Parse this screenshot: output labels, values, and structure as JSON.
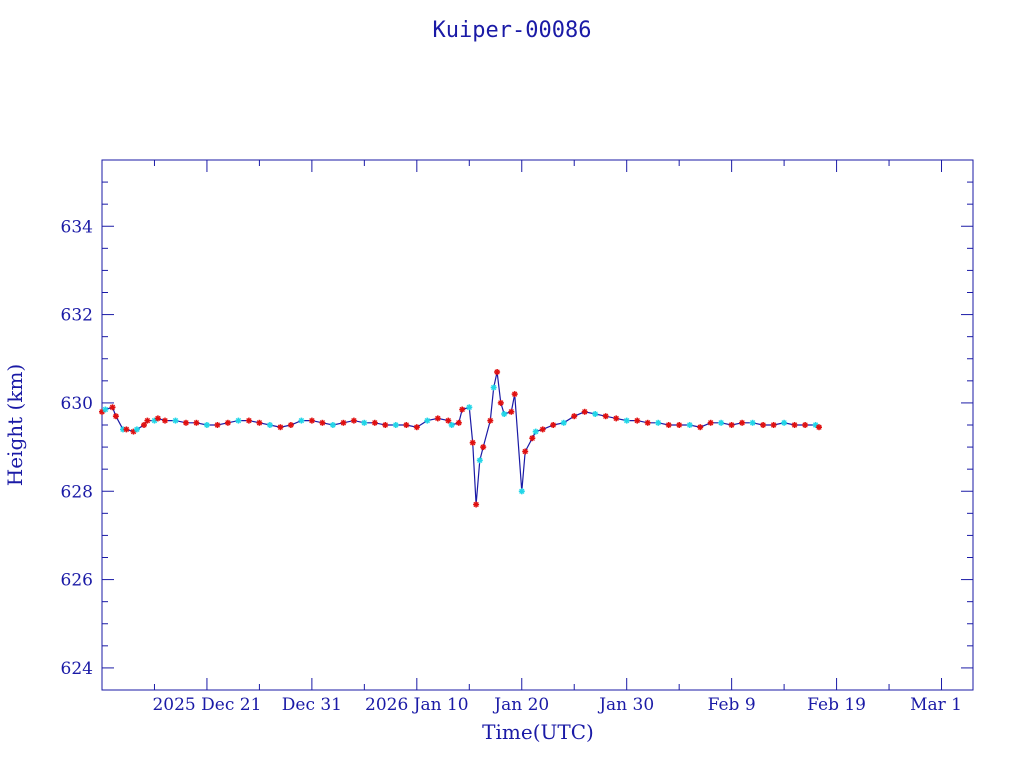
{
  "chart_data": {
    "type": "line",
    "title": "Kuiper-00086",
    "xlabel": "Time(UTC)",
    "ylabel": "Height (km)",
    "x_tick_labels": [
      "2025 Dec 21",
      "Dec 31",
      "2026 Jan 10",
      "Jan 20",
      "Jan 30",
      "Feb  9",
      "Feb 19",
      "Mar  1"
    ],
    "x_range": [
      "2025-12-11",
      "2026-03-04"
    ],
    "ylim": [
      623.5,
      635.5
    ],
    "y_ticks": [
      624,
      626,
      628,
      630,
      632,
      634
    ],
    "colors": {
      "axis": "#1a1aa6",
      "line": "#1a1aa6",
      "marker_red": "#e01010",
      "marker_cyan": "#22d6e8"
    },
    "series": [
      {
        "values": [
          [
            "2025-12-11",
            629.8
          ],
          [
            "2025-12-11",
            629.85
          ],
          [
            "2025-12-12",
            629.9
          ],
          [
            "2025-12-12",
            629.7
          ],
          [
            "2025-12-13",
            629.4
          ],
          [
            "2025-12-13",
            629.4
          ],
          [
            "2025-12-14",
            629.35
          ],
          [
            "2025-12-14",
            629.4
          ],
          [
            "2025-12-15",
            629.5
          ],
          [
            "2025-12-15",
            629.6
          ],
          [
            "2025-12-16",
            629.6
          ],
          [
            "2025-12-16",
            629.65
          ],
          [
            "2025-12-17",
            629.6
          ],
          [
            "2025-12-18",
            629.6
          ],
          [
            "2025-12-19",
            629.55
          ],
          [
            "2025-12-20",
            629.55
          ],
          [
            "2025-12-21",
            629.5
          ],
          [
            "2025-12-22",
            629.5
          ],
          [
            "2025-12-23",
            629.55
          ],
          [
            "2025-12-24",
            629.6
          ],
          [
            "2025-12-25",
            629.6
          ],
          [
            "2025-12-26",
            629.55
          ],
          [
            "2025-12-27",
            629.5
          ],
          [
            "2025-12-28",
            629.45
          ],
          [
            "2025-12-29",
            629.5
          ],
          [
            "2025-12-30",
            629.6
          ],
          [
            "2025-12-31",
            629.6
          ],
          [
            "2026-01-01",
            629.55
          ],
          [
            "2026-01-02",
            629.5
          ],
          [
            "2026-01-03",
            629.55
          ],
          [
            "2026-01-04",
            629.6
          ],
          [
            "2026-01-05",
            629.55
          ],
          [
            "2026-01-06",
            629.55
          ],
          [
            "2026-01-07",
            629.5
          ],
          [
            "2026-01-08",
            629.5
          ],
          [
            "2026-01-09",
            629.5
          ],
          [
            "2026-01-10",
            629.45
          ],
          [
            "2026-01-11",
            629.6
          ],
          [
            "2026-01-12",
            629.65
          ],
          [
            "2026-01-13",
            629.6
          ],
          [
            "2026-01-13",
            629.5
          ],
          [
            "2026-01-14",
            629.55
          ],
          [
            "2026-01-14",
            629.85
          ],
          [
            "2026-01-15",
            629.9
          ],
          [
            "2026-01-15",
            629.1
          ],
          [
            "2026-01-15",
            627.7
          ],
          [
            "2026-01-16",
            628.7
          ],
          [
            "2026-01-16",
            629.0
          ],
          [
            "2026-01-17",
            629.6
          ],
          [
            "2026-01-17",
            630.35
          ],
          [
            "2026-01-17",
            630.7
          ],
          [
            "2026-01-18",
            630.0
          ],
          [
            "2026-01-18",
            629.75
          ],
          [
            "2026-01-19",
            629.8
          ],
          [
            "2026-01-19",
            630.2
          ],
          [
            "2026-01-20",
            628.0
          ],
          [
            "2026-01-20",
            628.9
          ],
          [
            "2026-01-21",
            629.2
          ],
          [
            "2026-01-21",
            629.35
          ],
          [
            "2026-01-22",
            629.4
          ],
          [
            "2026-01-23",
            629.5
          ],
          [
            "2026-01-24",
            629.55
          ],
          [
            "2026-01-25",
            629.7
          ],
          [
            "2026-01-26",
            629.8
          ],
          [
            "2026-01-27",
            629.75
          ],
          [
            "2026-01-28",
            629.7
          ],
          [
            "2026-01-29",
            629.65
          ],
          [
            "2026-01-30",
            629.6
          ],
          [
            "2026-01-31",
            629.6
          ],
          [
            "2026-02-01",
            629.55
          ],
          [
            "2026-02-02",
            629.55
          ],
          [
            "2026-02-03",
            629.5
          ],
          [
            "2026-02-04",
            629.5
          ],
          [
            "2026-02-05",
            629.5
          ],
          [
            "2026-02-06",
            629.45
          ],
          [
            "2026-02-07",
            629.55
          ],
          [
            "2026-02-08",
            629.55
          ],
          [
            "2026-02-09",
            629.5
          ],
          [
            "2026-02-10",
            629.55
          ],
          [
            "2026-02-11",
            629.55
          ],
          [
            "2026-02-12",
            629.5
          ],
          [
            "2026-02-13",
            629.5
          ],
          [
            "2026-02-14",
            629.55
          ],
          [
            "2026-02-15",
            629.5
          ],
          [
            "2026-02-16",
            629.5
          ],
          [
            "2026-02-17",
            629.5
          ],
          [
            "2026-02-17",
            629.45
          ]
        ]
      }
    ]
  }
}
